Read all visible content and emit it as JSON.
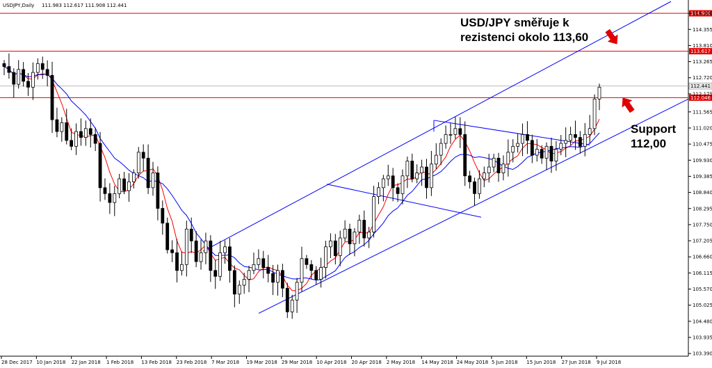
{
  "chart_data": {
    "type": "candlestick",
    "symbol_label": "USDJPY,Daily",
    "ohlc_label": "111.983 112.617 111.908 112.441",
    "price_range": [
      103.3,
      115.35
    ],
    "y_ticks": [
      "114.900",
      "114.355",
      "113.810",
      "113.265",
      "112.720",
      "112.175",
      "111.565",
      "111.020",
      "110.475",
      "109.930",
      "109.385",
      "108.840",
      "108.295",
      "107.750",
      "107.205",
      "106.660",
      "106.115",
      "105.570",
      "105.025",
      "104.480",
      "103.935",
      "103.390"
    ],
    "x_ticks": [
      "28 Dec 2017",
      "10 Jan 2018",
      "22 Jan 2018",
      "1 Feb 2018",
      "13 Feb 2018",
      "23 Feb 2018",
      "7 Mar 2018",
      "19 Mar 2018",
      "29 Mar 2018",
      "10 Apr 2018",
      "20 Apr 2018",
      "2 May 2018",
      "14 May 2018",
      "24 May 2018",
      "5 Jun 2018",
      "15 Jun 2018",
      "27 Jun 2018",
      "9 Jul 2018"
    ],
    "horizontal_levels": [
      {
        "price": 114.9,
        "label": "114.900",
        "color": "#e00000"
      },
      {
        "price": 113.617,
        "label": "113.617",
        "color": "#e00000"
      },
      {
        "price": 112.046,
        "label": "112.046",
        "color": "#e00000"
      }
    ],
    "current_price": {
      "price": 112.441,
      "label": "112.441"
    },
    "closes": [
      113.1,
      112.9,
      112.5,
      113.0,
      112.6,
      112.4,
      112.9,
      113.2,
      113.0,
      112.8,
      111.3,
      110.9,
      111.2,
      110.6,
      110.4,
      110.9,
      110.7,
      111.0,
      110.8,
      110.5,
      109.0,
      108.8,
      108.5,
      108.8,
      109.3,
      108.9,
      109.2,
      109.5,
      110.2,
      110.0,
      109.0,
      109.5,
      108.3,
      107.8,
      106.9,
      106.8,
      106.2,
      106.4,
      107.6,
      107.2,
      106.5,
      106.8,
      107.2,
      106.2,
      106.0,
      106.8,
      107.0,
      106.2,
      105.4,
      105.7,
      105.9,
      106.2,
      106.4,
      106.6,
      106.3,
      106.1,
      105.8,
      106.2,
      105.6,
      104.8,
      105.2,
      105.8,
      106.6,
      106.4,
      106.2,
      105.9,
      106.3,
      107.0,
      107.2,
      106.7,
      107.3,
      107.6,
      107.1,
      107.5,
      107.9,
      107.3,
      107.5,
      108.7,
      109.0,
      109.3,
      109.4,
      109.0,
      108.8,
      109.4,
      109.9,
      109.3,
      109.5,
      109.7,
      109.0,
      109.8,
      110.1,
      110.5,
      110.8,
      110.8,
      111.0,
      110.8,
      109.4,
      109.2,
      108.8,
      109.3,
      109.5,
      109.7,
      110.0,
      109.5,
      109.8,
      110.2,
      110.4,
      110.5,
      110.8,
      110.6,
      110.1,
      110.3,
      110.0,
      110.4,
      109.9,
      110.3,
      110.5,
      110.6,
      110.8,
      110.7,
      110.4,
      110.8,
      111.0,
      112.0,
      112.4
    ],
    "series": [
      {
        "name": "",
        "color": "#ff0000"
      },
      {
        "name": "",
        "color": "#0000ff"
      }
    ],
    "annotations": {
      "resistance_line1": "USD/JPY směřuje k",
      "resistance_line2": "rezistenci okolo 113,60",
      "support_line1": "Support",
      "support_line2": "112,00"
    },
    "colors": {
      "background": "#ffffff",
      "candle": "#000000",
      "level_line": "#e00000",
      "channel": "#0000ff",
      "arrow": "#e00000",
      "current_bg": "#e6e6e6",
      "level_label_bg": "#e00000"
    }
  }
}
